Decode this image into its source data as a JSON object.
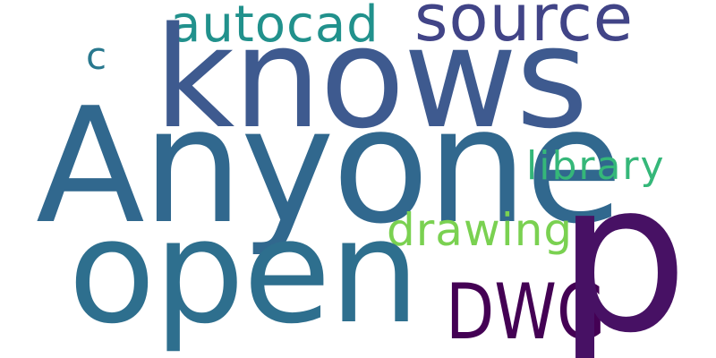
{
  "wordcloud": {
    "background": "#ffffff",
    "words": {
      "knows": {
        "text": "knows",
        "color": "#3e5a8f"
      },
      "anyone": {
        "text": "Anyone",
        "color": "#31688e"
      },
      "open": {
        "text": "open",
        "color": "#2e6f8e"
      },
      "p": {
        "text": "p",
        "color": "#471164"
      },
      "source": {
        "text": "source",
        "color": "#414487"
      },
      "autocad": {
        "text": "autocad",
        "color": "#21918c"
      },
      "c": {
        "text": "c",
        "color": "#29788e"
      },
      "library": {
        "text": "library",
        "color": "#35b779"
      },
      "drawing": {
        "text": "drawing",
        "color": "#7ad151"
      },
      "dwg": {
        "text": "DWG",
        "color": "#440154"
      }
    }
  }
}
